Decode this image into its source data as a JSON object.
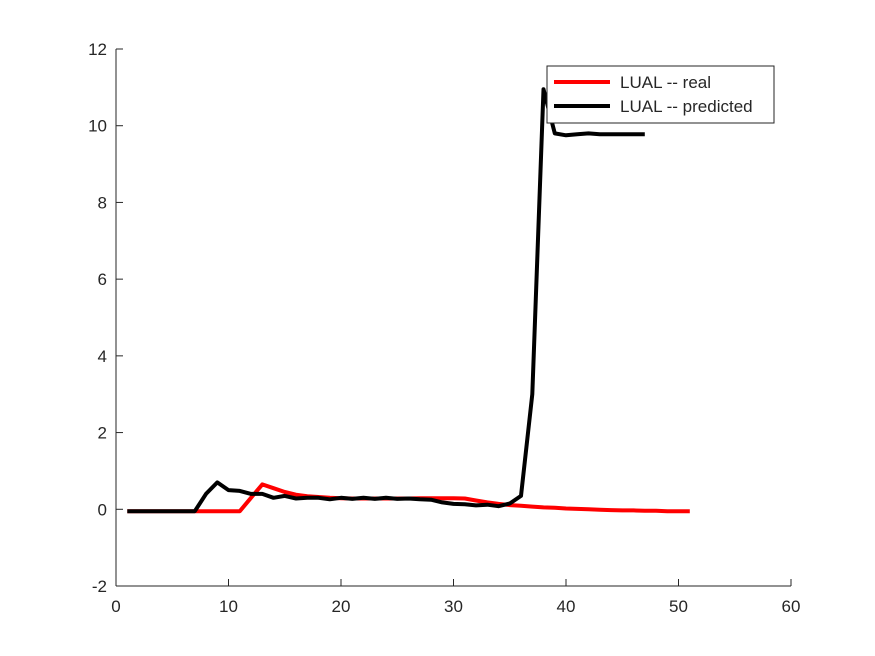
{
  "chart_data": {
    "type": "line",
    "title": "",
    "xlabel": "",
    "ylabel": "",
    "xlim": [
      0,
      60
    ],
    "ylim": [
      -2,
      12
    ],
    "xticks": [
      0,
      10,
      20,
      30,
      40,
      50,
      60
    ],
    "yticks": [
      -2,
      0,
      2,
      4,
      6,
      8,
      10,
      12
    ],
    "grid": false,
    "legend_position": "top-right",
    "series": [
      {
        "name": "LUAL -- real",
        "color": "#ff0000",
        "x": [
          1,
          2,
          3,
          4,
          5,
          6,
          7,
          8,
          9,
          10,
          11,
          12,
          13,
          14,
          15,
          16,
          17,
          18,
          19,
          20,
          21,
          22,
          23,
          24,
          25,
          26,
          27,
          28,
          29,
          30,
          31,
          32,
          33,
          34,
          35,
          36,
          37,
          38,
          39,
          40,
          41,
          42,
          43,
          44,
          45,
          46,
          47,
          48,
          49,
          50,
          51
        ],
        "y": [
          -0.05,
          -0.05,
          -0.05,
          -0.05,
          -0.05,
          -0.05,
          -0.05,
          -0.05,
          -0.05,
          -0.05,
          -0.05,
          0.3,
          0.65,
          0.55,
          0.45,
          0.38,
          0.34,
          0.32,
          0.3,
          0.29,
          0.28,
          0.28,
          0.28,
          0.28,
          0.28,
          0.28,
          0.29,
          0.29,
          0.29,
          0.29,
          0.28,
          0.23,
          0.18,
          0.14,
          0.11,
          0.09,
          0.07,
          0.05,
          0.04,
          0.02,
          0.01,
          0.0,
          -0.01,
          -0.02,
          -0.03,
          -0.03,
          -0.04,
          -0.04,
          -0.05,
          -0.05,
          -0.05
        ]
      },
      {
        "name": "LUAL -- predicted",
        "color": "#000000",
        "x": [
          1,
          2,
          3,
          4,
          5,
          6,
          7,
          8,
          9,
          10,
          11,
          12,
          13,
          14,
          15,
          16,
          17,
          18,
          19,
          20,
          21,
          22,
          23,
          24,
          25,
          26,
          27,
          28,
          29,
          30,
          31,
          32,
          33,
          34,
          35,
          36,
          37,
          38,
          39,
          40,
          41,
          42,
          43,
          44,
          45,
          46,
          47
        ],
        "y": [
          -0.05,
          -0.05,
          -0.05,
          -0.05,
          -0.05,
          -0.05,
          -0.05,
          0.4,
          0.7,
          0.5,
          0.48,
          0.4,
          0.4,
          0.3,
          0.35,
          0.28,
          0.3,
          0.3,
          0.26,
          0.3,
          0.27,
          0.3,
          0.27,
          0.3,
          0.27,
          0.28,
          0.26,
          0.25,
          0.18,
          0.14,
          0.13,
          0.1,
          0.12,
          0.08,
          0.15,
          0.35,
          3.0,
          10.95,
          9.8,
          9.75,
          9.78,
          9.8,
          9.78,
          9.78,
          9.78,
          9.78,
          9.78
        ]
      }
    ]
  }
}
